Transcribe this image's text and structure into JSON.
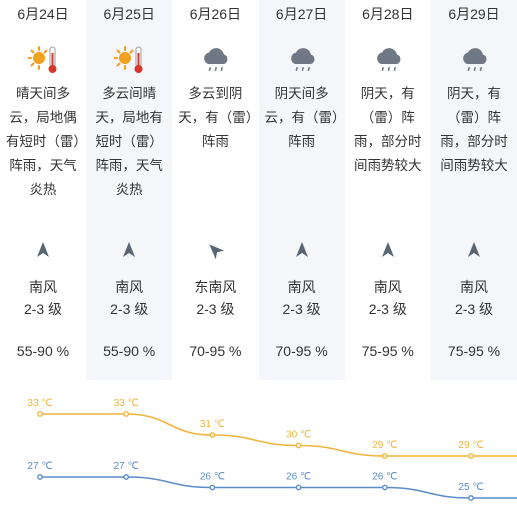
{
  "days": [
    {
      "date": "6月24日",
      "icon": "sunny-hot-icon",
      "desc": "晴天间多云，局地偶有短时（雷）阵雨，天气炎热",
      "wind_dir": "南风",
      "wind_level": "2-3 级",
      "humidity": "55-90 %",
      "high": "33 ℃",
      "low": "27 ℃"
    },
    {
      "date": "6月25日",
      "icon": "sunny-hot-icon",
      "desc": "多云间晴天，局地有短时（雷）阵雨，天气炎热",
      "wind_dir": "南风",
      "wind_level": "2-3 级",
      "humidity": "55-90 %",
      "high": "33 ℃",
      "low": "27 ℃"
    },
    {
      "date": "6月26日",
      "icon": "rain-cloud-icon",
      "desc": "多云到阴天，有（雷）阵雨",
      "wind_dir": "东南风",
      "wind_level": "2-3 级",
      "humidity": "70-95 %",
      "high": "31 ℃",
      "low": "26 ℃"
    },
    {
      "date": "6月27日",
      "icon": "rain-cloud-icon",
      "desc": "阴天间多云，有（雷）阵雨",
      "wind_dir": "南风",
      "wind_level": "2-3 级",
      "humidity": "70-95 %",
      "high": "30 ℃",
      "low": "26 ℃"
    },
    {
      "date": "6月28日",
      "icon": "rain-cloud-icon",
      "desc": "阴天，有（雷）阵雨，部分时间雨势较大",
      "wind_dir": "南风",
      "wind_level": "2-3 级",
      "humidity": "75-95 %",
      "high": "29 ℃",
      "low": "26 ℃"
    },
    {
      "date": "6月29日",
      "icon": "rain-cloud-icon",
      "desc": "阴天，有（雷）阵雨，部分时间雨势较大",
      "wind_dir": "南风",
      "wind_level": "2-3 级",
      "humidity": "75-95 %",
      "high": "29 ℃",
      "low": "25 ℃"
    }
  ],
  "chart_data": {
    "type": "line",
    "categories": [
      "6月24日",
      "6月25日",
      "6月26日",
      "6月27日",
      "6月28日",
      "6月29日"
    ],
    "series": [
      {
        "values": [
          33,
          33,
          31,
          30,
          29,
          29
        ],
        "color": "#f0b43c"
      },
      {
        "values": [
          27,
          27,
          26,
          26,
          26,
          25
        ],
        "color": "#5b8cc6"
      }
    ],
    "ylabel": "℃"
  },
  "colors": {
    "high_line": "#f0b43c",
    "low_line": "#5b8cc6",
    "icon_gray": "#6f7884",
    "sun": "#f2a020",
    "thermo": "#d9362b"
  }
}
